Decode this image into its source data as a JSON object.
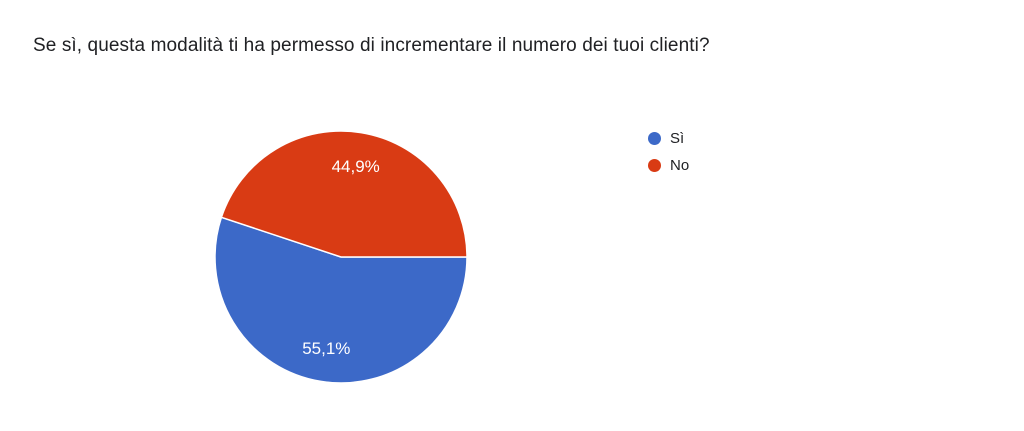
{
  "page": {
    "background_color": "#ffffff",
    "text_color": "#202124"
  },
  "header": {
    "title": "Se sì, questa modalità ti ha permesso di incrementare il numero dei tuoi clienti?"
  },
  "chart_data": {
    "type": "pie",
    "title": "Se sì, questa modalità ti ha permesso di incrementare il numero dei tuoi clienti?",
    "slices": [
      {
        "label": "Sì",
        "value": 55.1,
        "display": "55,1%",
        "color": "#3C69C8"
      },
      {
        "label": "No",
        "value": 44.9,
        "display": "44,9%",
        "color": "#D93B14"
      }
    ],
    "start_angle_deg": 0,
    "direction": "clockwise",
    "slice_border_color": "#ffffff",
    "label_color": "#ffffff",
    "legend_position": "right",
    "legend": [
      "Sì",
      "No"
    ]
  }
}
